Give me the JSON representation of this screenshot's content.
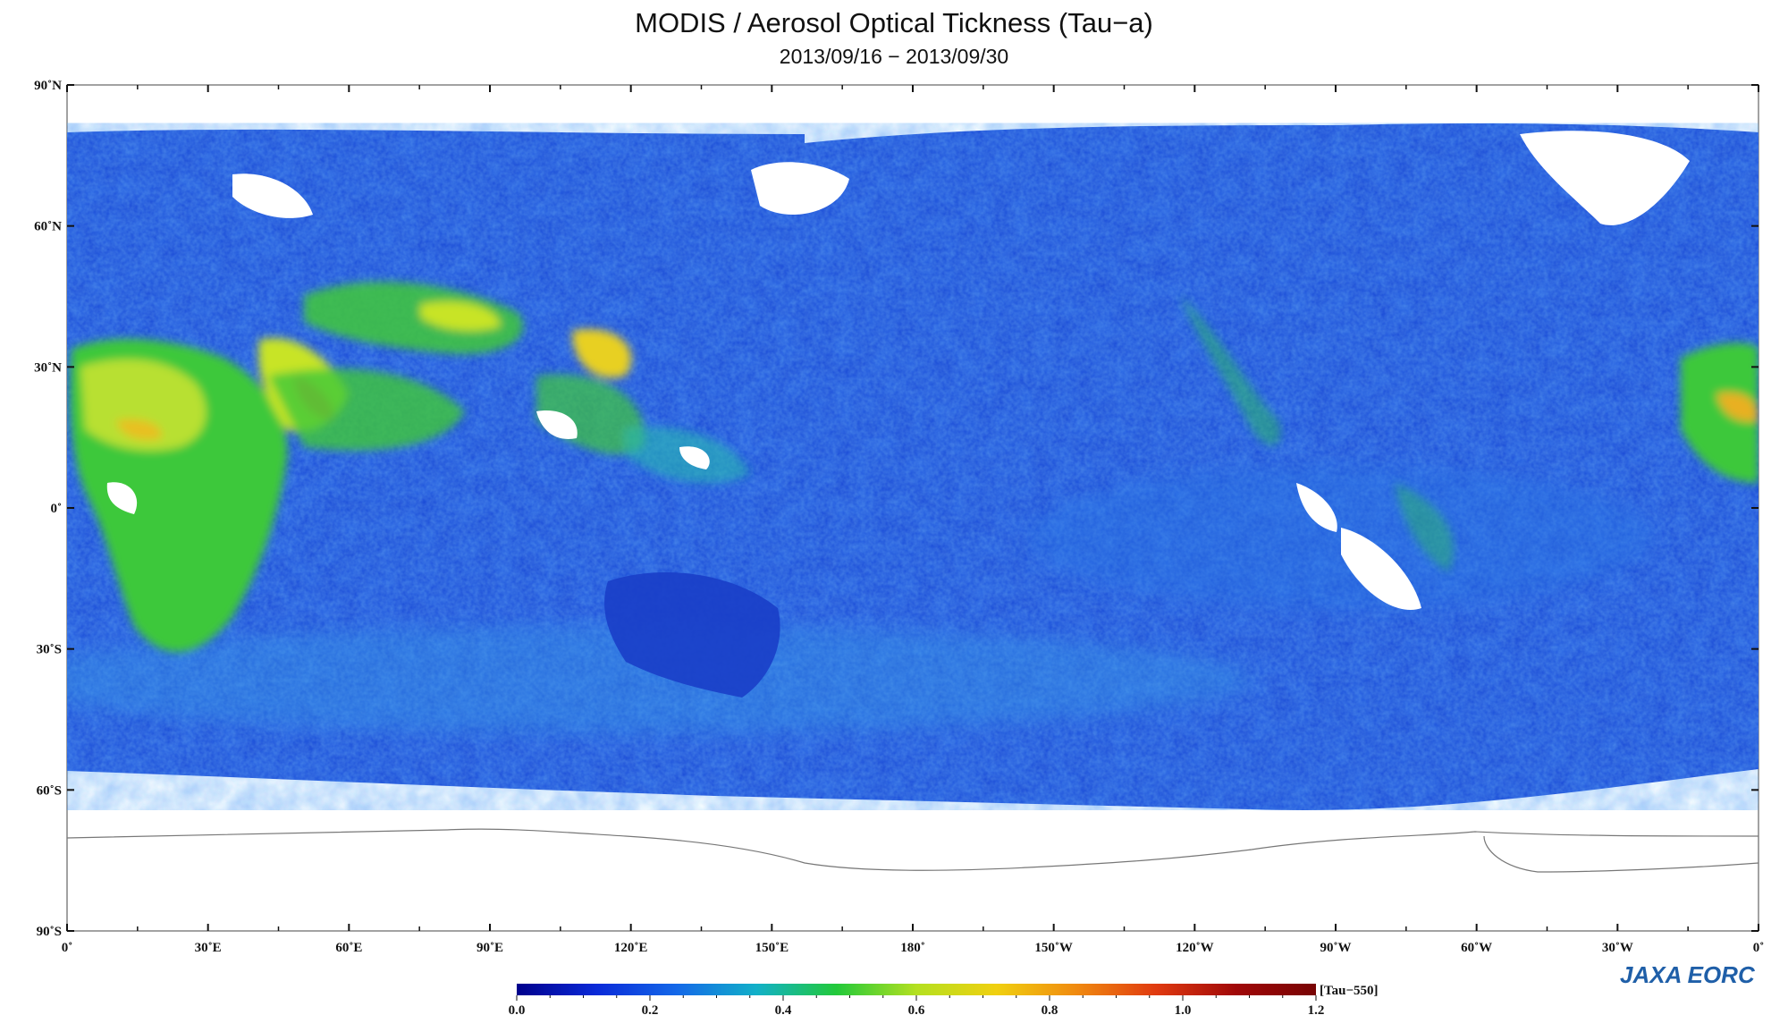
{
  "header": {
    "title": "MODIS / Aerosol Optical Tickness (Tau−a)",
    "subtitle": "2013/09/16 − 2013/09/30"
  },
  "map": {
    "projection": "equirectangular",
    "lon_range_east": [
      0,
      360
    ],
    "lat_range": [
      -90,
      90
    ],
    "lat_labels": [
      "90˚N",
      "60˚N",
      "30˚N",
      "0˚",
      "30˚S",
      "60˚S",
      "90˚S"
    ],
    "lon_labels": [
      "0˚",
      "30˚E",
      "60˚E",
      "90˚E",
      "120˚E",
      "150˚E",
      "180˚",
      "150˚W",
      "120˚W",
      "90˚W",
      "60˚W",
      "30˚W",
      "0˚"
    ],
    "fill_colors": {
      "ocean_low": "#1e4fd8",
      "land_mid": "#3ec83a",
      "high": "#e8e020",
      "very_high": "#e0502a",
      "no_data": "#ffffff"
    }
  },
  "colorbar": {
    "unit": "[Tau−550]",
    "ticks": [
      "0.0",
      "0.2",
      "0.4",
      "0.6",
      "0.8",
      "1.0",
      "1.2"
    ],
    "range": [
      0.0,
      1.2
    ],
    "colors": [
      "#00008c",
      "#0a2ad8",
      "#1468e8",
      "#12b0c8",
      "#22c93a",
      "#b4e020",
      "#f0d010",
      "#f08a10",
      "#e03a10",
      "#a00808",
      "#780404"
    ]
  },
  "logo": {
    "text": "JAXA EORC"
  }
}
